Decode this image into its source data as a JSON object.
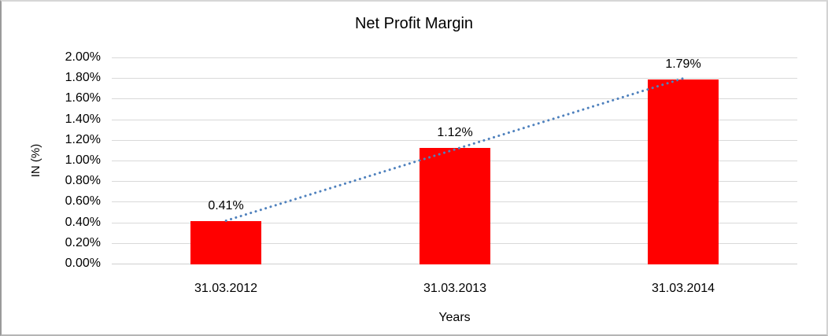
{
  "chart_data": {
    "type": "bar",
    "title": "Net Profit Margin",
    "xlabel": "Years",
    "ylabel": "IN (%)",
    "categories": [
      "31.03.2012",
      "31.03.2013",
      "31.03.2014"
    ],
    "values": [
      0.41,
      1.12,
      1.79
    ],
    "data_labels": [
      "0.41%",
      "1.12%",
      "1.79%"
    ],
    "ylim": [
      0,
      2
    ],
    "ytick_step": 0.2,
    "ytick_labels_top_to_bottom": [
      "2.00%",
      "1.80%",
      "1.60%",
      "1.40%",
      "1.20%",
      "1.00%",
      "0.80%",
      "0.60%",
      "0.40%",
      "0.20%",
      "0.00%"
    ],
    "grid": true,
    "legend": "none",
    "bar_color": "#ff0000",
    "gridline_color": "#d9d9d9",
    "axis_line_color": "#cfcfcf",
    "text_color": "#000000",
    "trendline": {
      "type": "linear",
      "style": "dotted",
      "color": "#4f81bd",
      "fit_values_at_first_and_last_category": [
        0.4167,
        1.7967
      ]
    }
  }
}
